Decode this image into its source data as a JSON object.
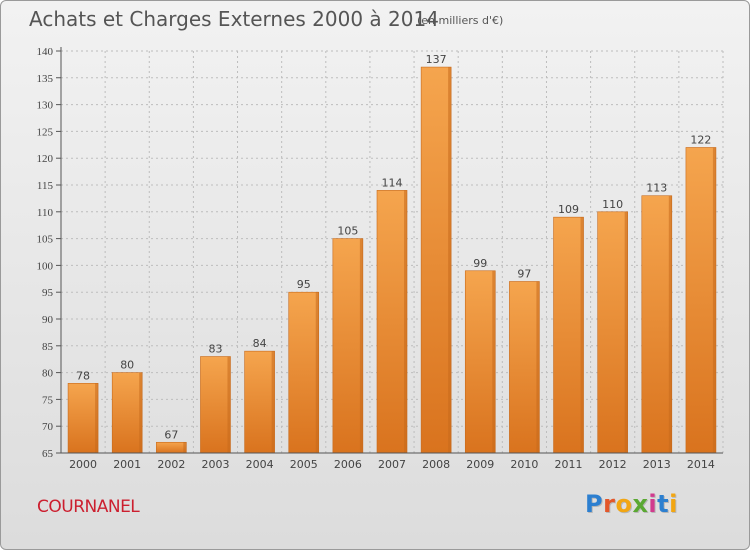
{
  "header": {
    "title": "Achats et Charges Externes 2000 à 2014",
    "subtitle": "(en milliers d'€)"
  },
  "footer": {
    "commune": "COURNANEL",
    "logo": [
      "P",
      "r",
      "o",
      "x",
      "i",
      "t",
      "i"
    ]
  },
  "colors": {
    "bar_light": "#f5a54e",
    "bar_dark": "#d9731e",
    "bar_side": "#c76a1c",
    "grid": "#bdbdbd",
    "axis": "#555555",
    "commune": "#cc1f2f"
  },
  "chart_data": {
    "type": "bar",
    "categories": [
      "2000",
      "2001",
      "2002",
      "2003",
      "2004",
      "2005",
      "2006",
      "2007",
      "2008",
      "2009",
      "2010",
      "2011",
      "2012",
      "2013",
      "2014"
    ],
    "values": [
      78,
      80,
      67,
      83,
      84,
      95,
      105,
      114,
      137,
      99,
      97,
      109,
      110,
      113,
      122
    ],
    "data_labels": [
      "78",
      "80",
      "67",
      "83",
      "84",
      "95",
      "105",
      "114",
      "137",
      "99",
      "97",
      "109",
      "110",
      "113",
      "122"
    ],
    "yticks": [
      "65",
      "70",
      "75",
      "80",
      "85",
      "90",
      "95",
      "100",
      "105",
      "110",
      "115",
      "120",
      "125",
      "130",
      "135",
      "140"
    ],
    "ylim": [
      65,
      140
    ],
    "grid": true,
    "legend": "none"
  }
}
